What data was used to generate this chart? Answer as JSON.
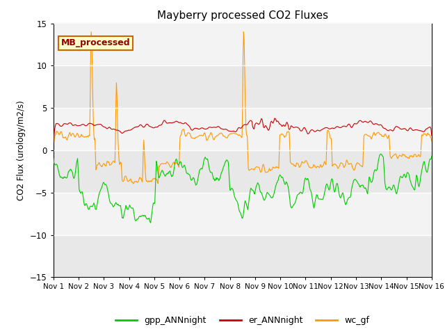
{
  "title": "Mayberry processed CO2 Fluxes",
  "ylabel": "CO2 Flux (urology/m2/s)",
  "ylim": [
    -15,
    15
  ],
  "xlim": [
    0,
    360
  ],
  "yticks": [
    -15,
    -10,
    -5,
    0,
    5,
    10,
    15
  ],
  "xtick_labels": [
    "Nov 1",
    "Nov 2",
    "Nov 3",
    "Nov 4",
    "Nov 5",
    "Nov 6",
    "Nov 7",
    "Nov 8",
    "Nov 9",
    "Nov 10",
    "Nov 11",
    "Nov 12",
    "Nov 13",
    "Nov 14",
    "Nov 15",
    "Nov 16"
  ],
  "xtick_positions": [
    0,
    24,
    48,
    72,
    96,
    120,
    144,
    168,
    192,
    216,
    240,
    264,
    288,
    312,
    336,
    360
  ],
  "color_gpp": "#00cc00",
  "color_er": "#cc0000",
  "color_wc": "#ff9900",
  "legend_label_gpp": "gpp_ANNnight",
  "legend_label_er": "er_ANNnight",
  "legend_label_wc": "wc_gf",
  "inset_label": "MB_processed",
  "inset_facecolor": "#ffffcc",
  "inset_edgecolor": "#cc6600",
  "bg_color": "#e8e8e8",
  "n_points": 721,
  "seed": 42
}
